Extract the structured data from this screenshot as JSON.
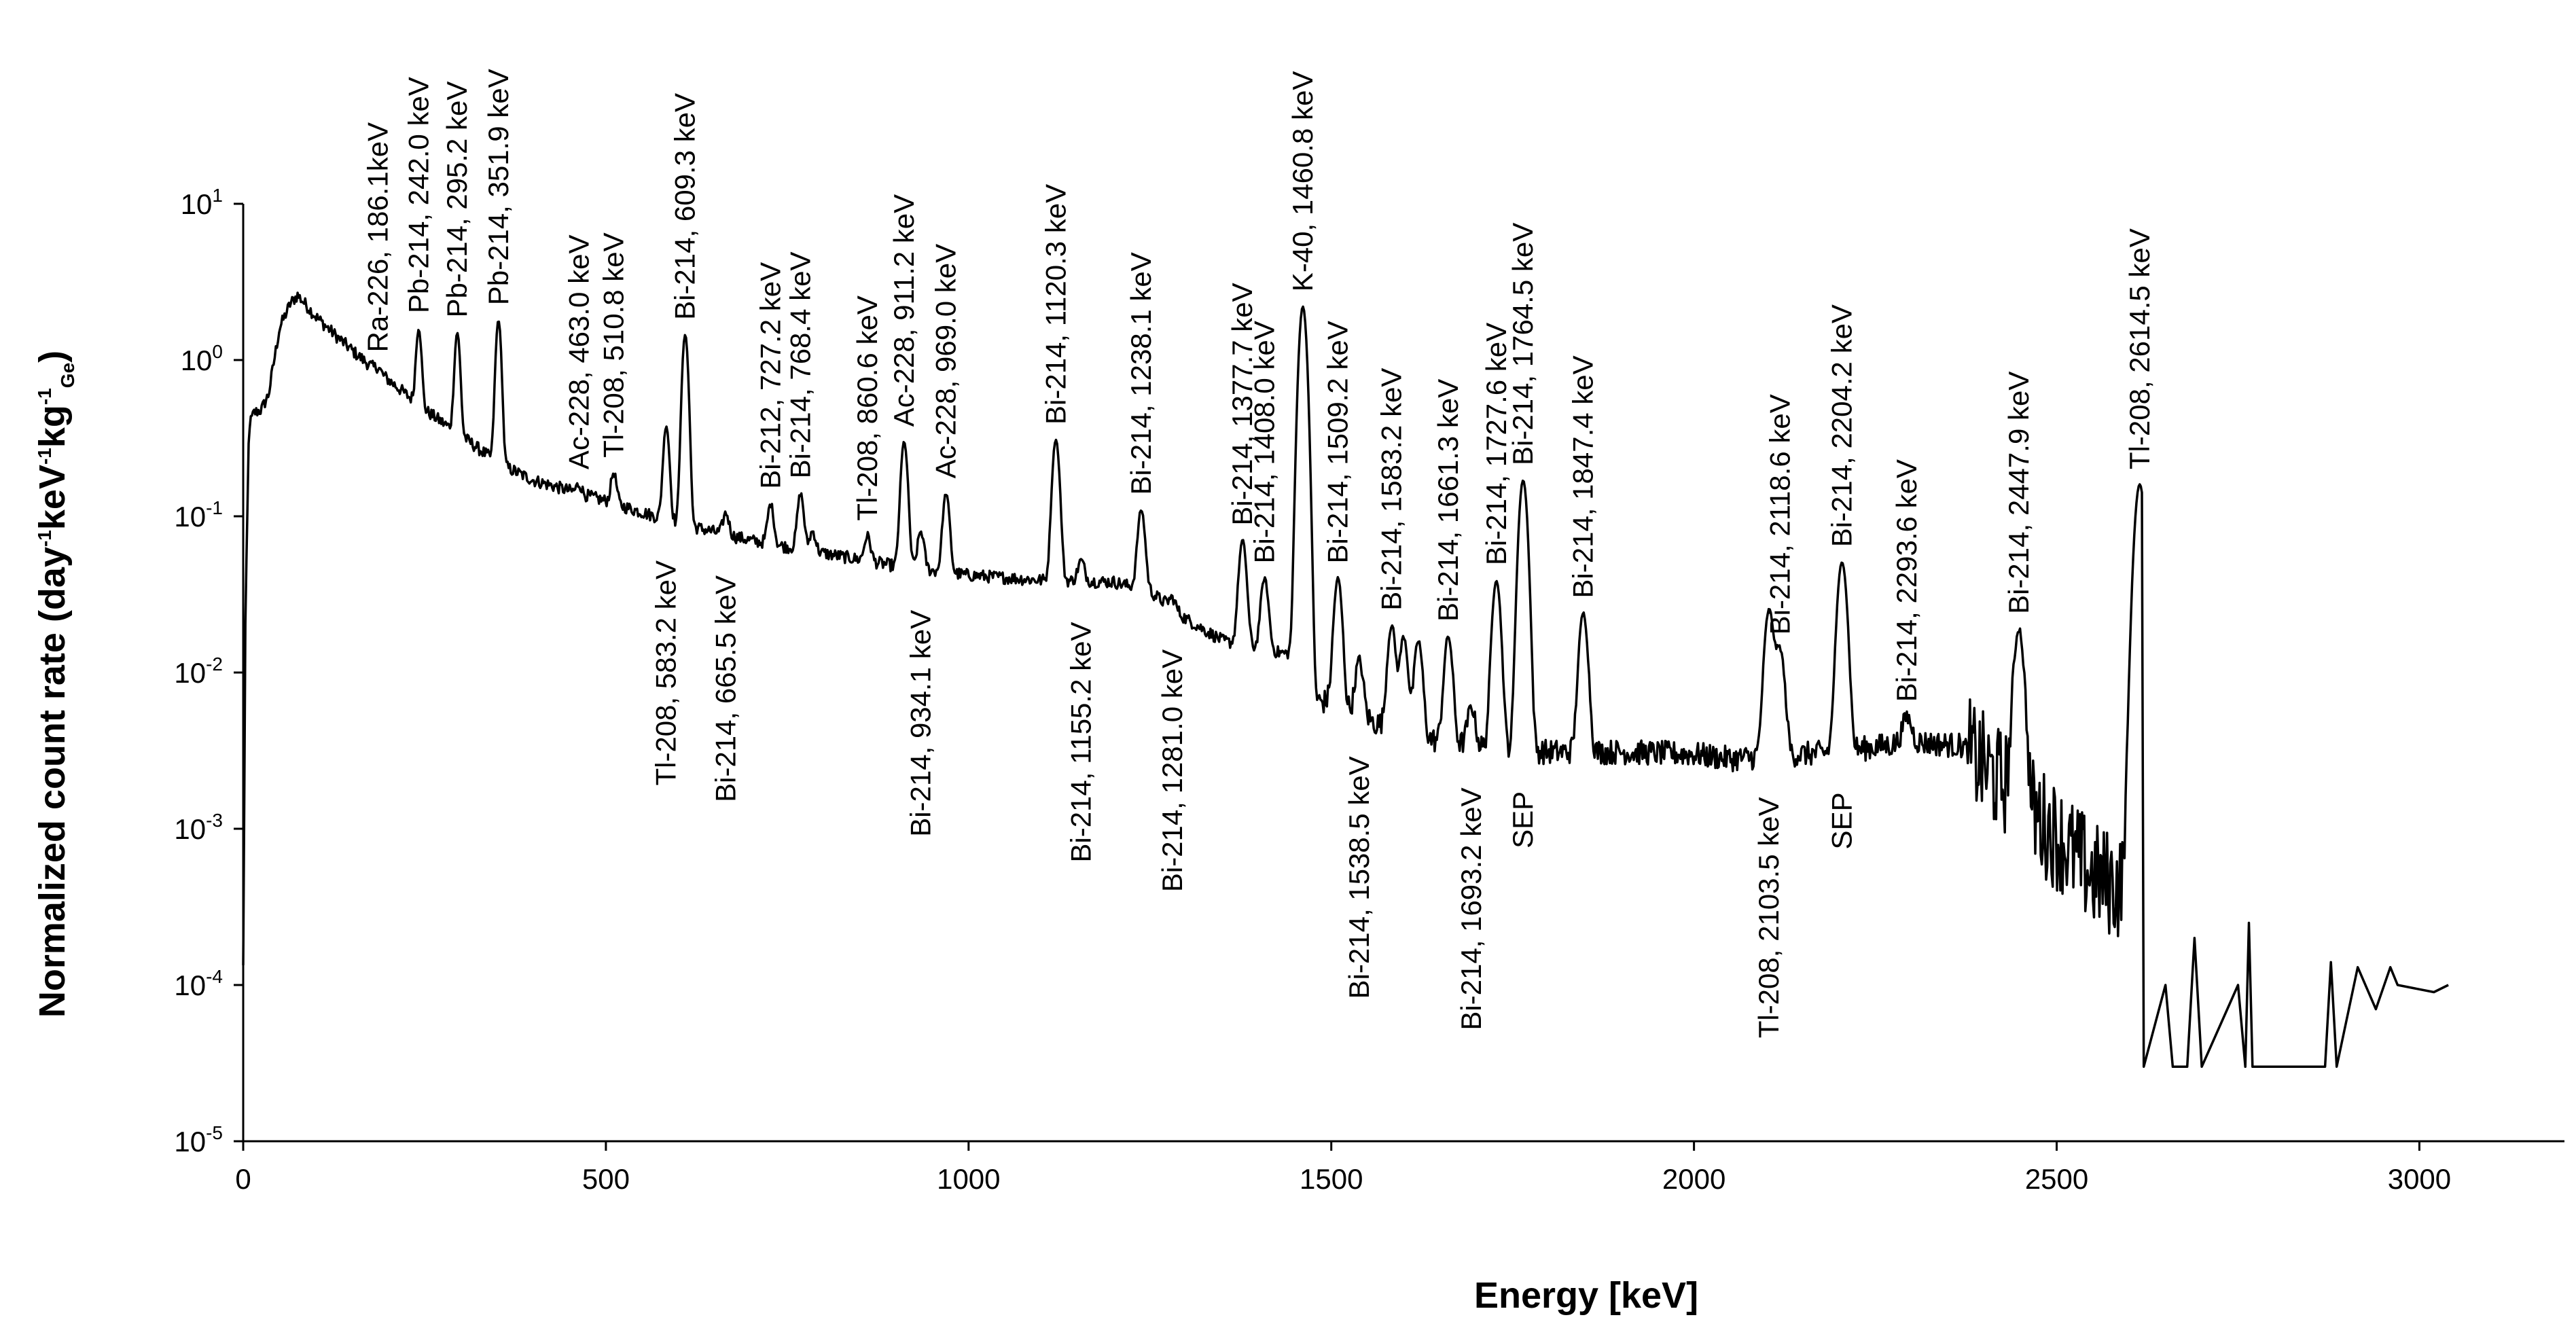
{
  "chart_data": {
    "type": "line",
    "title": "",
    "xlabel": "Energy [keV]",
    "ylabel": {
      "base": "Normalized count rate (day",
      "exp1": "-1",
      "mid1": "keV",
      "exp2": "-1",
      "mid2": "kg",
      "exp3": "-1",
      "sub": "Ge",
      "end": ")"
    },
    "xlim": [
      0,
      3200
    ],
    "ylim_log10": [
      -5,
      1
    ],
    "x_ticks": [
      0,
      500,
      1000,
      1500,
      2000,
      2500,
      3000
    ],
    "y_ticks": [
      {
        "exp": 1,
        "base": "10",
        "sup": "1"
      },
      {
        "exp": 0,
        "base": "10",
        "sup": "0"
      },
      {
        "exp": -1,
        "base": "10",
        "sup": "-1"
      },
      {
        "exp": -2,
        "base": "10",
        "sup": "-2"
      },
      {
        "exp": -3,
        "base": "10",
        "sup": "-3"
      },
      {
        "exp": -4,
        "base": "10",
        "sup": "-4"
      },
      {
        "exp": -5,
        "base": "10",
        "sup": "-5"
      }
    ],
    "series": [
      {
        "name": "spectrum",
        "baseline": [
          [
            0,
            0.00013
          ],
          [
            3,
            0.02
          ],
          [
            8,
            0.38
          ],
          [
            15,
            0.46
          ],
          [
            25,
            0.48
          ],
          [
            35,
            0.6
          ],
          [
            50,
            1.6
          ],
          [
            65,
            2.3
          ],
          [
            75,
            2.6
          ],
          [
            85,
            2.3
          ],
          [
            100,
            1.9
          ],
          [
            130,
            1.4
          ],
          [
            160,
            1.05
          ],
          [
            200,
            0.75
          ],
          [
            250,
            0.48
          ],
          [
            300,
            0.33
          ],
          [
            350,
            0.22
          ],
          [
            400,
            0.17
          ],
          [
            500,
            0.125
          ],
          [
            600,
            0.09
          ],
          [
            700,
            0.07
          ],
          [
            800,
            0.058
          ],
          [
            900,
            0.048
          ],
          [
            1000,
            0.042
          ],
          [
            1100,
            0.039
          ],
          [
            1200,
            0.038
          ],
          [
            1250,
            0.033
          ],
          [
            1300,
            0.022
          ],
          [
            1350,
            0.016
          ],
          [
            1400,
            0.014
          ],
          [
            1450,
            0.013
          ],
          [
            1460,
            0.0065
          ],
          [
            1500,
            0.0065
          ],
          [
            1550,
            0.005
          ],
          [
            1600,
            0.004
          ],
          [
            1700,
            0.0033
          ],
          [
            1800,
            0.0031
          ],
          [
            1900,
            0.0031
          ],
          [
            2000,
            0.003
          ],
          [
            2050,
            0.0028
          ],
          [
            2100,
            0.0029
          ],
          [
            2200,
            0.0031
          ],
          [
            2300,
            0.0036
          ],
          [
            2370,
            0.0034
          ],
          [
            2400,
            0.0025
          ],
          [
            2450,
            0.0015
          ],
          [
            2500,
            0.0009
          ],
          [
            2550,
            0.0005
          ],
          [
            2600,
            0.0004
          ],
          [
            2612,
            0.0001
          ],
          [
            2620,
            3e-05
          ],
          [
            2800,
            3e-05
          ],
          [
            2900,
            3e-05
          ]
        ],
        "peaks": [
          [
            186.1,
            0.9
          ],
          [
            242.0,
            1.6
          ],
          [
            295.2,
            1.5
          ],
          [
            351.9,
            1.8
          ],
          [
            463.0,
            0.16
          ],
          [
            510.8,
            0.19
          ],
          [
            583.2,
            0.38
          ],
          [
            609.3,
            1.45
          ],
          [
            665.5,
            0.105
          ],
          [
            727.2,
            0.12
          ],
          [
            768.4,
            0.14
          ],
          [
            785.0,
            0.08
          ],
          [
            860.6,
            0.075
          ],
          [
            911.2,
            0.3
          ],
          [
            934.1,
            0.08
          ],
          [
            969.0,
            0.14
          ],
          [
            1120.3,
            0.31
          ],
          [
            1155.2,
            0.052
          ],
          [
            1238.1,
            0.11
          ],
          [
            1281.0,
            0.03
          ],
          [
            1377.7,
            0.07
          ],
          [
            1408.0,
            0.04
          ],
          [
            1460.8,
            2.2
          ],
          [
            1509.2,
            0.04
          ],
          [
            1538.5,
            0.012
          ],
          [
            1583.2,
            0.02
          ],
          [
            1600.0,
            0.017
          ],
          [
            1620.0,
            0.016
          ],
          [
            1661.3,
            0.017
          ],
          [
            1693.2,
            0.006
          ],
          [
            1727.6,
            0.039
          ],
          [
            1764.5,
            0.17
          ],
          [
            1847.4,
            0.024
          ],
          [
            2103.5,
            0.025
          ],
          [
            2118.6,
            0.014
          ],
          [
            2204.2,
            0.051
          ],
          [
            2293.6,
            0.0052
          ],
          [
            2447.9,
            0.019
          ],
          [
            2614.5,
            0.16
          ]
        ],
        "tail": [
          [
            2620,
            3e-05
          ],
          [
            2650,
            0.0001
          ],
          [
            2660,
            3e-05
          ],
          [
            2680,
            3e-05
          ],
          [
            2690,
            0.0002
          ],
          [
            2700,
            3e-05
          ],
          [
            2750,
            0.0001
          ],
          [
            2760,
            3e-05
          ],
          [
            2765,
            0.00025
          ],
          [
            2770,
            3e-05
          ],
          [
            2870,
            3e-05
          ],
          [
            2878,
            0.00014
          ],
          [
            2886,
            3e-05
          ],
          [
            2915,
            0.00013
          ],
          [
            2940,
            7e-05
          ],
          [
            2960,
            0.00013
          ],
          [
            2970,
            0.0001
          ],
          [
            3020,
            9e-05
          ],
          [
            3040,
            0.0001
          ]
        ]
      }
    ],
    "annotations_top": [
      {
        "energy": 186.1,
        "text": "Ra-226, 186.1keV"
      },
      {
        "energy": 242.0,
        "text": "Pb-214, 242.0 keV"
      },
      {
        "energy": 295.2,
        "text": "Pb-214, 295.2 keV"
      },
      {
        "energy": 351.9,
        "text": "Pb-214, 351.9 keV"
      },
      {
        "energy": 463.0,
        "text": "Ac-228, 463.0 keV"
      },
      {
        "energy": 510.8,
        "text": "Tl-208, 510.8 keV"
      },
      {
        "energy": 609.3,
        "text": "Bi-214, 609.3 keV"
      },
      {
        "energy": 727.2,
        "text": "Bi-212, 727.2 keV"
      },
      {
        "energy": 768.4,
        "text": "Bi-214, 768.4 keV"
      },
      {
        "energy": 860.6,
        "text": "Tl-208, 860.6 keV"
      },
      {
        "energy": 911.2,
        "text": "Ac-228, 911.2 keV"
      },
      {
        "energy": 969.0,
        "text": "Ac-228, 969.0 keV"
      },
      {
        "energy": 1120.3,
        "text": "Bi-214, 1120.3 keV"
      },
      {
        "energy": 1238.1,
        "text": "Bi-214, 1238.1 keV"
      },
      {
        "energy": 1377.7,
        "text": "Bi-214, 1377.7 keV"
      },
      {
        "energy": 1408.0,
        "text": "Bi-214, 1408.0 keV"
      },
      {
        "energy": 1460.8,
        "text": "K-40, 1460.8 keV"
      },
      {
        "energy": 1509.2,
        "text": "Bi-214, 1509.2 keV"
      },
      {
        "energy": 1583.2,
        "text": "Bi-214, 1583.2 keV"
      },
      {
        "energy": 1661.3,
        "text": "Bi-214, 1661.3 keV"
      },
      {
        "energy": 1727.6,
        "text": "Bi-214, 1727.6 keV"
      },
      {
        "energy": 1764.5,
        "text": "Bi-214, 1764.5 keV"
      },
      {
        "energy": 1847.4,
        "text": "Bi-214, 1847.4 keV"
      },
      {
        "energy": 2118.6,
        "text": "Bi-214, 2118.6 keV"
      },
      {
        "energy": 2204.2,
        "text": "Bi-214, 2204.2 keV"
      },
      {
        "energy": 2293.6,
        "text": "Bi-214, 2293.6 keV"
      },
      {
        "energy": 2447.9,
        "text": "Bi-214, 2447.9 keV"
      },
      {
        "energy": 2614.5,
        "text": "Tl-208, 2614.5 keV"
      }
    ],
    "annotations_bottom": [
      {
        "energy": 583.2,
        "text": "Tl-208, 583.2 keV"
      },
      {
        "energy": 665.5,
        "text": "Bi-214, 665.5 keV"
      },
      {
        "energy": 934.1,
        "text": "Bi-214, 934.1 keV"
      },
      {
        "energy": 1155.2,
        "text": "Bi-214, 1155.2 keV"
      },
      {
        "energy": 1281.0,
        "text": "Bi-214, 1281.0 keV"
      },
      {
        "energy": 1538.5,
        "text": "Bi-214, 1538.5 keV"
      },
      {
        "energy": 1693.2,
        "text": "Bi-214, 1693.2 keV"
      },
      {
        "energy": 1764.5,
        "text": "SEP"
      },
      {
        "energy": 2103.5,
        "text": "Tl-208, 2103.5 keV"
      },
      {
        "energy": 2204.2,
        "text": "SEP"
      }
    ]
  }
}
